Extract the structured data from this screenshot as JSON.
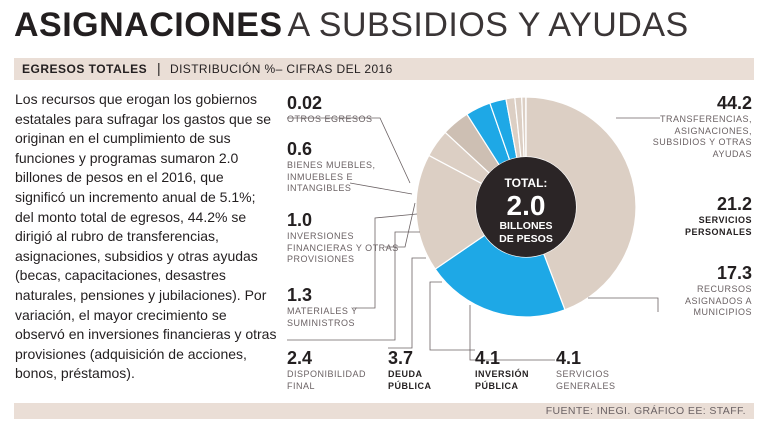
{
  "title": {
    "bold": "ASIGNACIONES",
    "light": "A SUBSIDIOS Y AYUDAS"
  },
  "subtitle": {
    "bold": "EGRESOS TOTALES",
    "separator": "|",
    "light": "DISTRIBUCIÓN  %– CIFRAS DEL 2016"
  },
  "body_text": "Los recursos que erogan los gobiernos estatales para sufragar los gastos que se originan en el cumplimiento de sus funciones y programas sumaron 2.0 billones de pesos en el 2016, que significó un incremento anual de 5.1%; del monto total de egresos, 44.2% se dirigió al rubro de transferencias, asignaciones, subsidios y otras ayudas (becas, capacitaciones, desastres naturales, pensiones y jubilaciones). Por variación, el mayor crecimiento se observó en inversiones financieras y otras provisiones (adquisición de acciones, bonos, préstamos).",
  "center": {
    "label_top": "TOTAL:",
    "value": "2.0",
    "label_bottom_1": "BILLONES",
    "label_bottom_2": "DE PESOS"
  },
  "source": "FUENTE: INEGI. GRÁFICO EE: STAFF.",
  "colors": {
    "accent_blue": "#1ea8e6",
    "slice_tan": "#dccfc4",
    "slice_tan_dark": "#cdbfb3",
    "band": "#eaded6",
    "center": "#2b2526"
  },
  "chart_data": {
    "type": "pie",
    "title": "EGRESOS TOTALES — DISTRIBUCIÓN %, CIFRAS DEL 2016",
    "unit": "%",
    "total": "2.0 billones de pesos",
    "slices": [
      {
        "name": "TRANSFERENCIAS, ASIGNACIONES, SUBSIDIOS Y OTRAS AYUDAS",
        "value": 44.2,
        "color": "#dccfc4"
      },
      {
        "name": "SERVICIOS PERSONALES",
        "value": 21.2,
        "color": "#1ea8e6"
      },
      {
        "name": "RECURSOS ASIGNADOS A MUNICIPIOS",
        "value": 17.3,
        "color": "#dccfc4"
      },
      {
        "name": "SERVICIOS GENERALES",
        "value": 4.1,
        "color": "#dccfc4"
      },
      {
        "name": "INVERSIÓN PÚBLICA",
        "value": 4.1,
        "color": "#cdbfb3"
      },
      {
        "name": "DEUDA PÚBLICA",
        "value": 3.7,
        "color": "#1ea8e6"
      },
      {
        "name": "DISPONIBILIDAD FINAL",
        "value": 2.4,
        "color": "#1ea8e6"
      },
      {
        "name": "MATERIALES Y SUMINISTROS",
        "value": 1.3,
        "color": "#dccfc4"
      },
      {
        "name": "INVERSIONES FINANCIERAS Y OTRAS PROVISIONES",
        "value": 1.0,
        "color": "#dccfc4"
      },
      {
        "name": "BIENES MUEBLES, INMUEBLES E INTANGIBLES",
        "value": 0.6,
        "color": "#dccfc4"
      },
      {
        "name": "OTROS EGRESOS",
        "value": 0.02,
        "color": "#dccfc4"
      }
    ]
  },
  "labels": {
    "otros": {
      "value": "0.02",
      "desc": "OTROS EGRESOS"
    },
    "bienes": {
      "value": "0.6",
      "desc": "BIENES MUEBLES,\nINMUEBLES E\nINTANGIBLES"
    },
    "inversiones_fin": {
      "value": "1.0",
      "desc": "INVERSIONES\nFINANCIERAS Y OTRAS\nPROVISIONES"
    },
    "materiales": {
      "value": "1.3",
      "desc": "MATERIALES Y\nSUMINISTROS"
    },
    "disponibilidad": {
      "value": "2.4",
      "desc": "DISPONIBILIDAD\nFINAL"
    },
    "deuda": {
      "value": "3.7",
      "desc": "DEUDA\nPÚBLICA"
    },
    "inversion_pub": {
      "value": "4.1",
      "desc": "INVERSIÓN\nPÚBLICA"
    },
    "servicios_gen": {
      "value": "4.1",
      "desc": "SERVICIOS\nGENERALES"
    },
    "transferencias": {
      "value": "44.2",
      "desc": "TRANSFERENCIAS,\nASIGNACIONES,\nSUBSIDIOS Y OTRAS\nAYUDAS"
    },
    "servicios_per": {
      "value": "21.2",
      "desc": "SERVICIOS\nPERSONALES"
    },
    "recursos_mun": {
      "value": "17.3",
      "desc": "RECURSOS\nASIGNADOS A\nMUNICIPIOS"
    }
  }
}
